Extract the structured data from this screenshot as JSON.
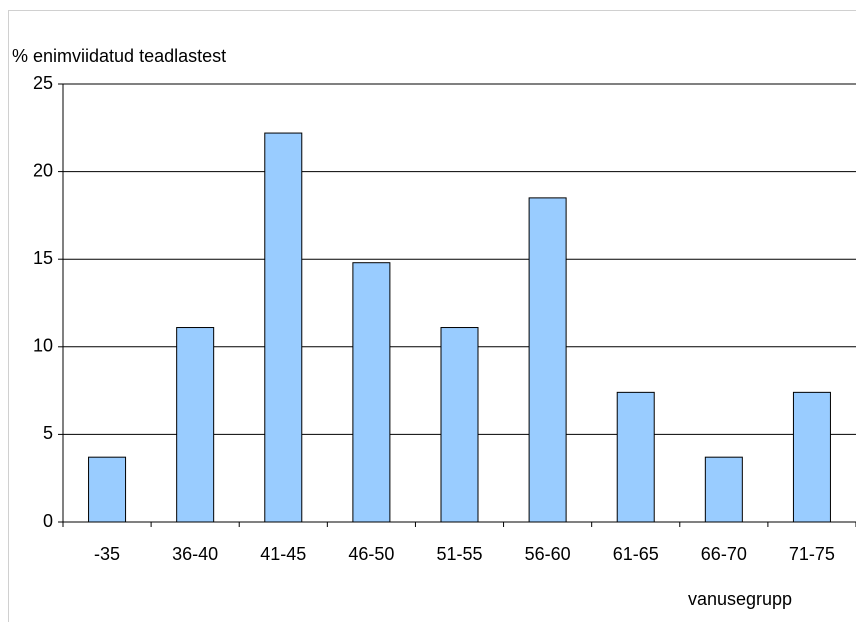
{
  "chart_data": {
    "type": "bar",
    "y_axis_label": "% enimviidatud teadlastest",
    "x_axis_label": "vanusegrupp",
    "categories": [
      "-35",
      "36-40",
      "41-45",
      "46-50",
      "51-55",
      "56-60",
      "61-65",
      "66-70",
      "71-75"
    ],
    "values": [
      3.7,
      11.1,
      22.2,
      14.8,
      11.1,
      18.5,
      7.4,
      3.7,
      7.4
    ],
    "color": "#99ccff",
    "ylim": [
      0,
      25
    ],
    "yticks": [
      0,
      5,
      10,
      15,
      20,
      25
    ],
    "grid": true
  }
}
